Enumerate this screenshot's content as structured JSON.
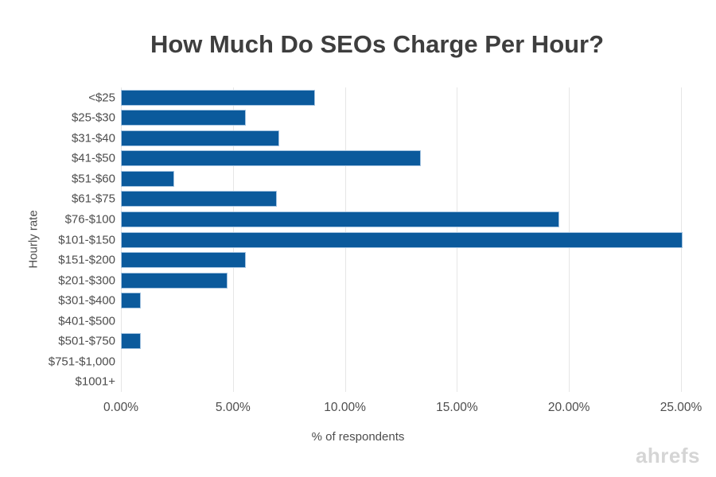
{
  "watermark": "ahrefs",
  "chart_data": {
    "type": "bar",
    "orientation": "horizontal",
    "title": "How Much Do SEOs Charge Per Hour?",
    "xlabel": "% of respondents",
    "ylabel": "Hourly rate",
    "categories": [
      "<$25",
      "$25-$30",
      "$31-$40",
      "$41-$50",
      "$51-$60",
      "$61-$75",
      "$76-$100",
      "$101-$150",
      "$151-$200",
      "$201-$300",
      "$301-$400",
      "$401-$500",
      "$501-$750",
      "$751-$1,000",
      "$1001+"
    ],
    "values": [
      8.6,
      5.5,
      7.0,
      13.3,
      2.3,
      6.9,
      19.5,
      25.0,
      5.5,
      4.7,
      0.8,
      0,
      0.8,
      0,
      0
    ],
    "xlim": [
      0,
      25
    ],
    "x_ticks": [
      {
        "value": 0,
        "label": "0.00%"
      },
      {
        "value": 5,
        "label": "5.00%"
      },
      {
        "value": 10,
        "label": "10.00%"
      },
      {
        "value": 15,
        "label": "15.00%"
      },
      {
        "value": 20,
        "label": "20.00%"
      },
      {
        "value": 25,
        "label": "25.00%"
      }
    ],
    "grid": "vertical",
    "legend": "none",
    "bar_color": "#0b5a9c",
    "bar_border_color": "#a3c3e0",
    "gridline_color": "#e6e6e6",
    "title_color": "#3e3e3e",
    "label_color": "#4d4d4d",
    "watermark_color": "#d5d5d5",
    "background_color": "#ffffff"
  }
}
